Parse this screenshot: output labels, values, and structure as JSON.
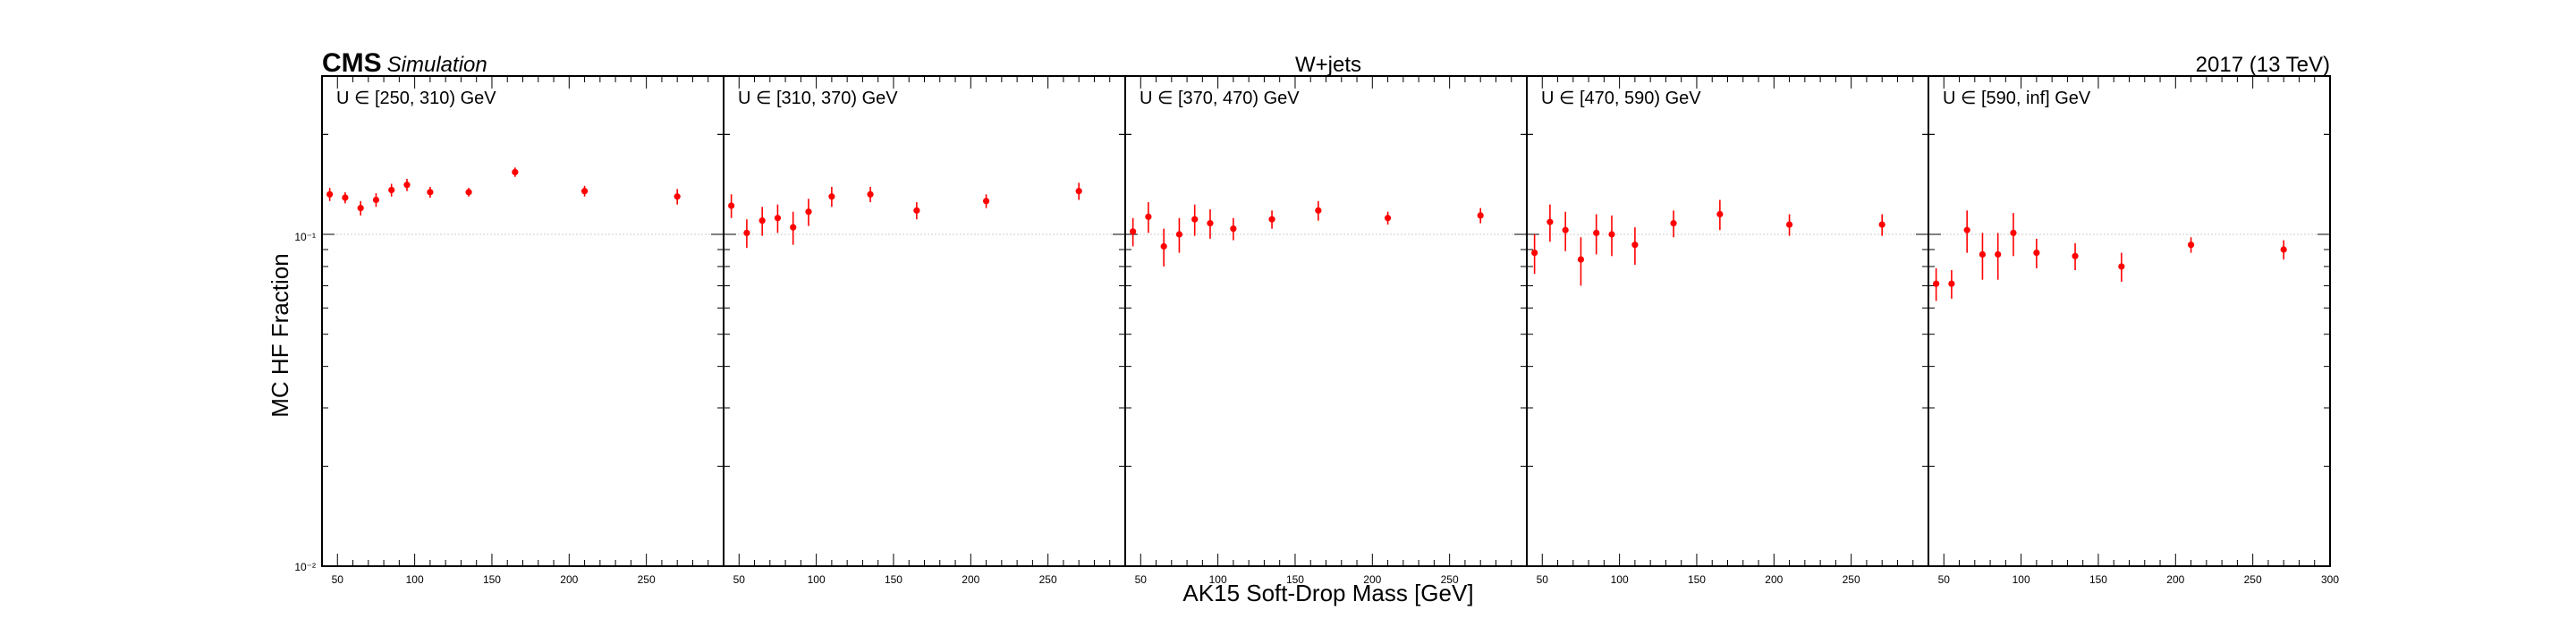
{
  "header": {
    "experiment": "CMS",
    "status": "Simulation",
    "process": "W+jets",
    "lumi_label": "2017 (13 TeV)"
  },
  "axes": {
    "xlabel": "AK15 Soft-Drop Mass [GeV]",
    "ylabel": "MC HF Fraction",
    "ylim": [
      0.01,
      0.3
    ],
    "yscale": "log",
    "y_tick_labels": [
      "10⁻²",
      "10⁻¹"
    ],
    "x_tick_labels": [
      "50",
      "100",
      "150",
      "200",
      "250",
      "300"
    ],
    "reference_line_y": 0.1
  },
  "colors": {
    "marker": "#ff0000",
    "frame": "#000000",
    "reference_line": "#cccccc"
  },
  "chart_data": [
    {
      "type": "scatter",
      "label": "U ∈ [250, 310) GeV",
      "xlim": [
        40,
        300
      ],
      "x": [
        45,
        55,
        65,
        75,
        85,
        95,
        110,
        135,
        165,
        210,
        270
      ],
      "y": [
        0.132,
        0.129,
        0.12,
        0.127,
        0.136,
        0.141,
        0.134,
        0.134,
        0.154,
        0.135,
        0.13
      ],
      "yerr": [
        0.006,
        0.005,
        0.006,
        0.006,
        0.006,
        0.006,
        0.005,
        0.004,
        0.005,
        0.005,
        0.007
      ]
    },
    {
      "type": "scatter",
      "label": "U ∈ [310, 370) GeV",
      "xlim": [
        40,
        300
      ],
      "x": [
        45,
        55,
        65,
        75,
        85,
        95,
        110,
        135,
        165,
        210,
        270
      ],
      "y": [
        0.122,
        0.101,
        0.11,
        0.112,
        0.105,
        0.117,
        0.13,
        0.132,
        0.118,
        0.126,
        0.135
      ],
      "yerr": [
        0.01,
        0.01,
        0.011,
        0.011,
        0.012,
        0.011,
        0.009,
        0.007,
        0.007,
        0.006,
        0.008
      ]
    },
    {
      "type": "scatter",
      "label": "U ∈ [370, 470) GeV",
      "xlim": [
        40,
        300
      ],
      "x": [
        45,
        55,
        65,
        75,
        85,
        95,
        110,
        135,
        165,
        210,
        270
      ],
      "y": [
        0.102,
        0.113,
        0.092,
        0.1,
        0.111,
        0.108,
        0.104,
        0.111,
        0.118,
        0.112,
        0.114
      ],
      "yerr": [
        0.01,
        0.012,
        0.012,
        0.012,
        0.012,
        0.011,
        0.008,
        0.007,
        0.008,
        0.005,
        0.006
      ]
    },
    {
      "type": "scatter",
      "label": "U ∈ [470, 590) GeV",
      "xlim": [
        40,
        300
      ],
      "x": [
        45,
        55,
        65,
        75,
        85,
        95,
        110,
        135,
        165,
        210,
        270
      ],
      "y": [
        0.088,
        0.109,
        0.103,
        0.084,
        0.101,
        0.1,
        0.093,
        0.108,
        0.115,
        0.107,
        0.107
      ],
      "yerr": [
        0.012,
        0.014,
        0.014,
        0.014,
        0.014,
        0.014,
        0.012,
        0.01,
        0.012,
        0.008,
        0.008
      ]
    },
    {
      "type": "scatter",
      "label": "U ∈ [590, inf] GeV",
      "xlim": [
        40,
        300
      ],
      "x": [
        45,
        55,
        65,
        75,
        85,
        95,
        110,
        135,
        165,
        210,
        270
      ],
      "y": [
        0.071,
        0.071,
        0.103,
        0.087,
        0.087,
        0.101,
        0.088,
        0.086,
        0.08,
        0.093,
        0.09
      ],
      "yerr": [
        0.008,
        0.007,
        0.015,
        0.014,
        0.014,
        0.015,
        0.009,
        0.008,
        0.008,
        0.005,
        0.006
      ]
    }
  ]
}
